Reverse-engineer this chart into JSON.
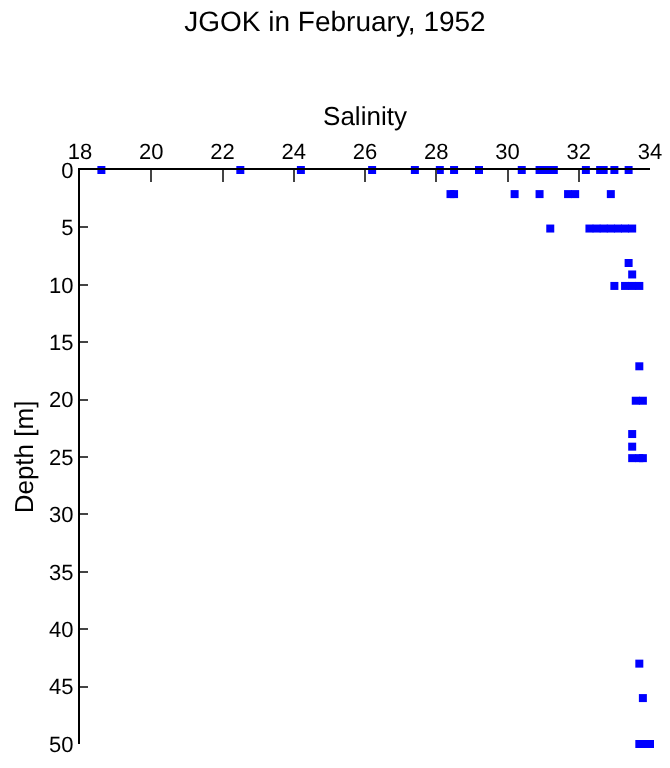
{
  "chart_data": {
    "type": "scatter",
    "title": "JGOK in February, 1952",
    "xlabel": "Salinity",
    "ylabel": "Depth [m]",
    "xlim": [
      18,
      34
    ],
    "xticks": [
      18,
      20,
      22,
      24,
      26,
      28,
      30,
      32,
      34
    ],
    "ylim": [
      50,
      0
    ],
    "yticks": [
      0,
      5,
      10,
      15,
      20,
      25,
      30,
      35,
      40,
      45,
      50
    ],
    "grid": false,
    "marker": "square",
    "series": [
      {
        "color": "#0000ff",
        "x": [
          18.6,
          22.5,
          24.2,
          26.2,
          27.4,
          28.1,
          28.5,
          29.2,
          30.4,
          30.9,
          31.1,
          31.3,
          32.2,
          32.6,
          32.7,
          33.0,
          33.4,
          28.4,
          28.5,
          30.2,
          30.9,
          31.7,
          31.9,
          32.9,
          31.2,
          32.3,
          32.5,
          32.7,
          32.9,
          33.1,
          33.3,
          33.5,
          33.4,
          33.5,
          33.0,
          33.3,
          33.5,
          33.7,
          33.7,
          33.6,
          33.8,
          33.5,
          33.5,
          33.5,
          33.7,
          33.8,
          33.7,
          33.8,
          33.7,
          33.9,
          34.0
        ],
        "values": [
          0,
          0,
          0,
          0,
          0,
          0,
          0,
          0,
          0,
          0,
          0,
          0,
          0,
          0,
          0,
          0,
          0,
          2.1,
          2.1,
          2.1,
          2.1,
          2.1,
          2.1,
          2.1,
          5.1,
          5.1,
          5.1,
          5.1,
          5.1,
          5.1,
          5.1,
          5.1,
          8.1,
          9.1,
          10.1,
          10.1,
          10.1,
          10.1,
          17.1,
          20.1,
          20.1,
          23,
          24.1,
          25.1,
          25.1,
          25.1,
          43,
          46,
          50,
          50,
          50
        ]
      }
    ]
  }
}
